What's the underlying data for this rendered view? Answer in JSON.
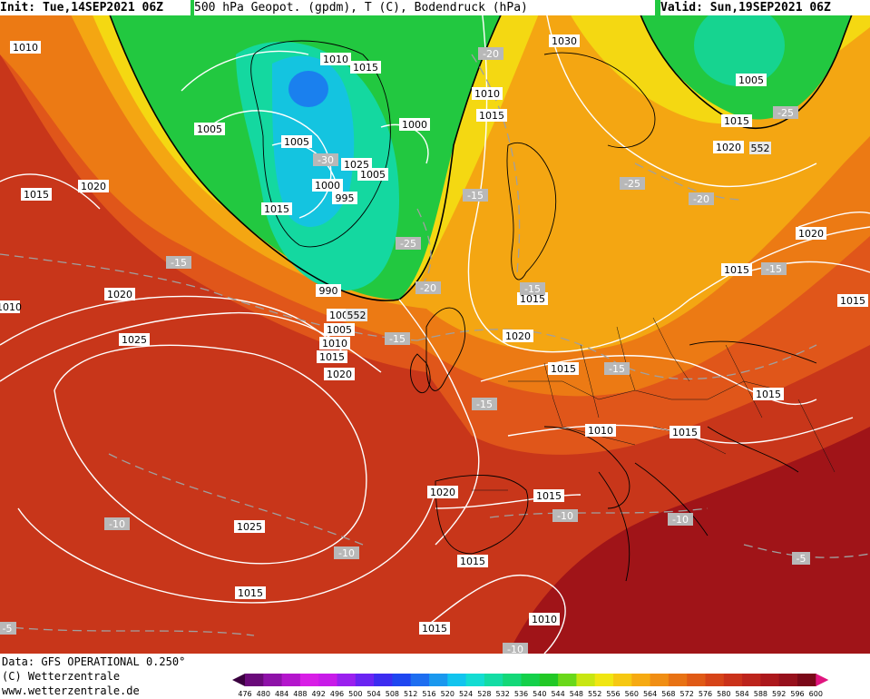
{
  "header": {
    "init": "Init: Tue,14SEP2021 06Z",
    "title": "500 hPa Geopot. (gpdm), T (C), Bodendruck (hPa)",
    "valid": "Valid: Sun,19SEP2021 06Z"
  },
  "footer": {
    "line1": "Data: GFS OPERATIONAL 0.250°",
    "line2": "(C) Wetterzentrale",
    "line3": "www.wetterzentrale.de"
  },
  "colorscale": {
    "ticks": [
      "476",
      "480",
      "484",
      "488",
      "492",
      "496",
      "500",
      "504",
      "508",
      "512",
      "516",
      "520",
      "524",
      "528",
      "532",
      "536",
      "540",
      "544",
      "548",
      "552",
      "556",
      "560",
      "564",
      "568",
      "572",
      "576",
      "580",
      "584",
      "588",
      "592",
      "596",
      "600"
    ],
    "colors": [
      "#3a003f",
      "#6a0a7a",
      "#8e12a8",
      "#b416cc",
      "#d81ee6",
      "#c81be8",
      "#9a20ee",
      "#6a24f2",
      "#3c2cf0",
      "#1e46f0",
      "#1e6ef0",
      "#1a98ee",
      "#12c4ee",
      "#14dcd2",
      "#14dca4",
      "#14d878",
      "#14d04a",
      "#22c826",
      "#6ad81a",
      "#c8e612",
      "#f0e612",
      "#f6c812",
      "#f6aa12",
      "#f08e14",
      "#e87214",
      "#e05a16",
      "#d64418",
      "#ca321a",
      "#bc241c",
      "#ac181c",
      "#96101c",
      "#7a0818",
      "#e0147e"
    ]
  },
  "pressure_labels": [
    "1010",
    "1010",
    "1015",
    "1030",
    "1005",
    "1010",
    "1015",
    "1005",
    "1000",
    "1005",
    "1015",
    "1020",
    "1025",
    "1005",
    "1000",
    "995",
    "1015",
    "1015",
    "1020",
    "990",
    "1000",
    "1005",
    "1015",
    "1020",
    "1025",
    "1010",
    "1015",
    "1020",
    "1015",
    "1020",
    "1010",
    "1015",
    "1015",
    "1015",
    "1020",
    "1015",
    "1025",
    "1020",
    "1015",
    "1015",
    "1010",
    "1015",
    "1015",
    "1015",
    "1010"
  ],
  "temp_labels": [
    "-20",
    "-25",
    "-30",
    "-25",
    "-15",
    "-15",
    "-20",
    "-15",
    "-25",
    "-20",
    "-15",
    "-15",
    "-15",
    "-15",
    "-10",
    "-10",
    "-10",
    "-10",
    "-5",
    "-5",
    "-10"
  ],
  "height_labels": [
    "552",
    "552"
  ]
}
